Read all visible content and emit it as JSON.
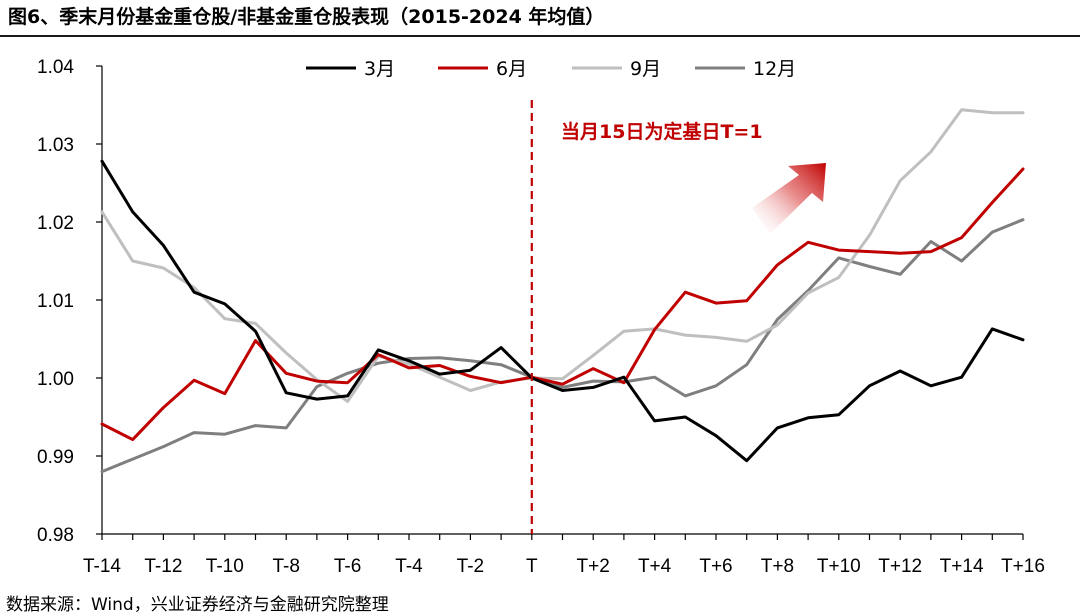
{
  "header": {
    "title": "图6、季末月份基金重仓股/非基金重仓股表现（2015-2024 年均值）"
  },
  "footer": {
    "source": "数据来源：Wind，兴业证券经济与金融研究院整理"
  },
  "colors": {
    "s3": "#000000",
    "s6": "#c00000",
    "s9": "#bfbfbf",
    "s12": "#7f7f7f",
    "marker": "#c00000"
  },
  "chart_data": {
    "type": "line",
    "title": "图6、季末月份基金重仓股/非基金重仓股表现（2015-2024 年均值）",
    "xlabel": "",
    "ylabel": "",
    "ylim": [
      0.98,
      1.04
    ],
    "y_ticks": [
      "0.98",
      "0.99",
      "1.00",
      "1.01",
      "1.02",
      "1.03",
      "1.04"
    ],
    "y_tick_values": [
      0.98,
      0.99,
      1.0,
      1.01,
      1.02,
      1.03,
      1.04
    ],
    "x": [
      -14,
      -13,
      -12,
      -11,
      -10,
      -9,
      -8,
      -7,
      -6,
      -5,
      -4,
      -3,
      -2,
      -1,
      0,
      1,
      2,
      3,
      4,
      5,
      6,
      7,
      8,
      9,
      10,
      11,
      12,
      13,
      14,
      15,
      16
    ],
    "x_tick_labels": [
      "T-14",
      "T-12",
      "T-10",
      "T-8",
      "T-6",
      "T-4",
      "T-2",
      "T",
      "T+2",
      "T+4",
      "T+6",
      "T+8",
      "T+10",
      "T+12",
      "T+14",
      "T+16"
    ],
    "x_tick_positions": [
      -14,
      -12,
      -10,
      -8,
      -6,
      -4,
      -2,
      0,
      2,
      4,
      6,
      8,
      10,
      12,
      14,
      16
    ],
    "legend_position": "top",
    "reference_line": {
      "x": 0,
      "style": "dashed"
    },
    "annotation": "当月15日为定基日T=1",
    "series": [
      {
        "name": "3月",
        "color_key": "s3",
        "values": [
          1.0278,
          1.0213,
          1.017,
          1.011,
          1.0095,
          1.006,
          0.9981,
          0.9973,
          0.9977,
          1.0036,
          1.0022,
          1.0005,
          1.001,
          1.0039,
          1.0,
          0.9984,
          0.9988,
          1.0001,
          0.9945,
          0.995,
          0.9926,
          0.9894,
          0.9936,
          0.9949,
          0.9953,
          0.999,
          1.0009,
          0.999,
          1.0001,
          1.0063,
          1.0049
        ]
      },
      {
        "name": "6月",
        "color_key": "s6",
        "values": [
          0.9941,
          0.9921,
          0.9962,
          0.9997,
          0.998,
          1.0048,
          1.0006,
          0.9996,
          0.9994,
          1.003,
          1.0013,
          1.0016,
          1.0002,
          0.9994,
          1.0001,
          0.9992,
          1.0012,
          0.9994,
          1.0062,
          1.011,
          1.0096,
          1.0099,
          1.0145,
          1.0174,
          1.0164,
          1.0162,
          1.016,
          1.0162,
          1.018,
          1.0225,
          1.0268
        ]
      },
      {
        "name": "9月",
        "color_key": "s9",
        "values": [
          1.0213,
          1.015,
          1.0141,
          1.0116,
          1.0076,
          1.007,
          1.0032,
          0.9998,
          0.997,
          1.0028,
          1.0018,
          1.0001,
          0.9984,
          0.9995,
          1.0,
          0.9999,
          1.0029,
          1.006,
          1.0063,
          1.0055,
          1.0052,
          1.0047,
          1.0068,
          1.0109,
          1.0129,
          1.0183,
          1.0253,
          1.029,
          1.0344,
          1.034,
          1.034
        ]
      },
      {
        "name": "12月",
        "color_key": "s12",
        "values": [
          0.988,
          0.9896,
          0.9912,
          0.993,
          0.9928,
          0.9939,
          0.9936,
          0.9989,
          1.0006,
          1.0019,
          1.0025,
          1.0026,
          1.0022,
          1.0017,
          1.0001,
          0.9988,
          0.9996,
          0.9995,
          1.0001,
          0.9977,
          0.999,
          1.0017,
          1.0075,
          1.0112,
          1.0154,
          1.0143,
          1.0133,
          1.0175,
          1.015,
          1.0187,
          1.0203
        ]
      }
    ]
  }
}
